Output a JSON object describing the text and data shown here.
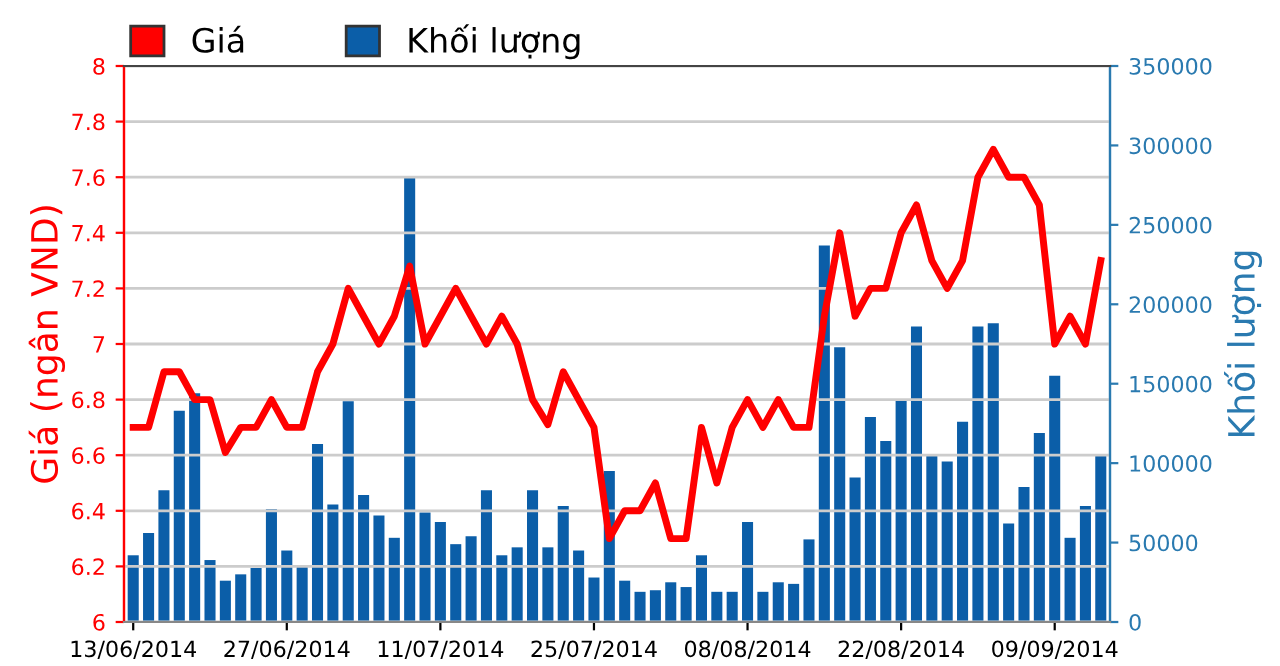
{
  "chart_data": {
    "type": "line",
    "ylabel": "Giá (ngân VND)",
    "y2label": "Khối lượng",
    "categories": [
      "13/06/2014",
      null,
      null,
      null,
      null,
      null,
      null,
      null,
      null,
      null,
      "27/06/2014",
      null,
      null,
      null,
      null,
      null,
      null,
      null,
      null,
      null,
      "11/07/2014",
      null,
      null,
      null,
      null,
      null,
      null,
      null,
      null,
      null,
      "25/07/2014",
      null,
      null,
      null,
      null,
      null,
      null,
      null,
      null,
      null,
      "08/08/2014",
      null,
      null,
      null,
      null,
      null,
      null,
      null,
      null,
      null,
      "22/08/2014",
      null,
      null,
      null,
      null,
      null,
      null,
      null,
      null,
      null,
      "09/09/2014",
      null,
      null,
      null
    ],
    "series": [
      {
        "name": "Khối lượng",
        "type": "bar",
        "axis": "y2",
        "color": "#0b5ea8",
        "values": [
          42000,
          56000,
          83000,
          133000,
          144000,
          39000,
          26000,
          30000,
          34000,
          71000,
          45000,
          35000,
          112000,
          74000,
          139000,
          80000,
          67000,
          53000,
          280000,
          69000,
          63000,
          49000,
          54000,
          83000,
          42000,
          47000,
          83000,
          47000,
          73000,
          45000,
          28000,
          95000,
          26000,
          19000,
          20000,
          25000,
          22000,
          42000,
          19000,
          19000,
          63000,
          19000,
          25000,
          24000,
          52000,
          237000,
          173000,
          91000,
          129000,
          114000,
          140000,
          186000,
          105000,
          101000,
          126000,
          186000,
          188000,
          62000,
          85000,
          119000,
          155000,
          53000,
          73000,
          105000
        ]
      },
      {
        "name": "Giá",
        "color": "#ff0000",
        "values": [
          6.7,
          6.7,
          6.9,
          6.9,
          6.8,
          6.8,
          6.61,
          6.7,
          6.7,
          6.8,
          6.7,
          6.7,
          6.9,
          7.0,
          7.2,
          7.1,
          7.0,
          7.1,
          7.28,
          7.0,
          7.1,
          7.2,
          7.1,
          7.0,
          7.1,
          7.0,
          6.8,
          6.71,
          6.9,
          6.8,
          6.7,
          6.3,
          6.4,
          6.4,
          6.5,
          6.3,
          6.3,
          6.7,
          6.5,
          6.7,
          6.8,
          6.7,
          6.8,
          6.7,
          6.7,
          7.1,
          7.4,
          7.1,
          7.2,
          7.2,
          7.4,
          7.5,
          7.3,
          7.2,
          7.3,
          7.6,
          7.7,
          7.6,
          7.6,
          7.5,
          7.0,
          7.1,
          7.0,
          7.3
        ]
      }
    ],
    "ylim": [
      6,
      8
    ],
    "yticks": [
      6,
      6.2,
      6.4,
      6.6,
      6.8,
      7,
      7.2,
      7.4,
      7.6,
      7.8,
      8
    ],
    "y2lim": [
      0,
      350000
    ],
    "y2ticks": [
      0,
      50000,
      100000,
      150000,
      200000,
      250000,
      300000,
      350000
    ],
    "grid": "y",
    "legend": "top left",
    "marker": "none",
    "line_style": "solid"
  }
}
